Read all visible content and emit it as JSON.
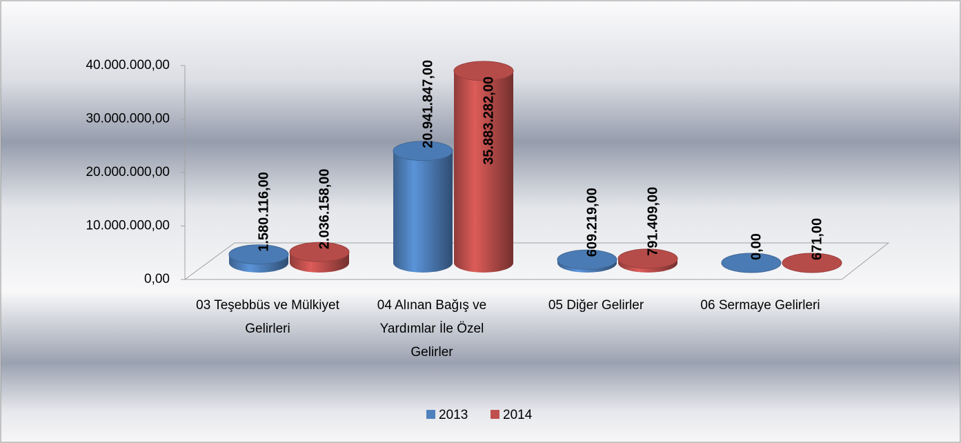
{
  "chart_data": {
    "type": "bar3d",
    "categories": [
      "03 Teşebbüs ve Mülkiyet Gelirleri",
      "04 Alınan Bağış ve Yardımlar İle Özel Gelirler",
      "05 Diğer Gelirler",
      "06 Sermaye Gelirleri"
    ],
    "series": [
      {
        "name": "2013",
        "color": "#4f81bd",
        "values": [
          1580116,
          20941847,
          609219,
          0
        ],
        "value_labels": [
          "1.580.116,00",
          "20.941.847,00",
          "609.219,00",
          "0,00"
        ]
      },
      {
        "name": "2014",
        "color": "#c0504d",
        "values": [
          2036158,
          35883282,
          791409,
          671
        ],
        "value_labels": [
          "2.036.158,00",
          "35.883.282,00",
          "791.409,00",
          "671,00"
        ]
      }
    ],
    "ylim": [
      0,
      40000000
    ],
    "yticks": [
      {
        "value": 0,
        "label": "0,00"
      },
      {
        "value": 10000000,
        "label": "10.000.000,00"
      },
      {
        "value": 20000000,
        "label": "20.000.000,00"
      },
      {
        "value": 30000000,
        "label": "30.000.000,00"
      },
      {
        "value": 40000000,
        "label": "40.000.000,00"
      }
    ],
    "legend": "bottom",
    "grid": false
  }
}
